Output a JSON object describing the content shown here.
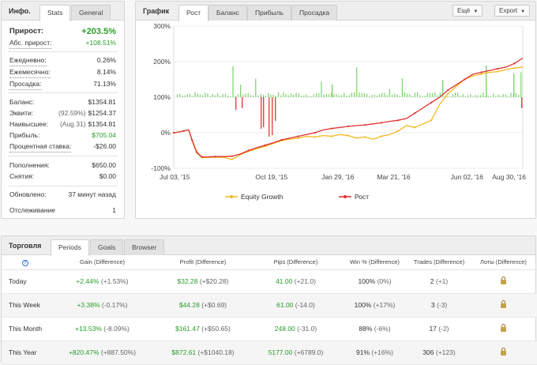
{
  "info": {
    "title": "Инфо.",
    "tabs": [
      "Stats",
      "General"
    ],
    "rows": {
      "gain_label": "Прирост:",
      "gain_value": "+203.5%",
      "abs_label": "Абс. прирост:",
      "abs_value": "+108.51%",
      "daily_label": "Ежедневно:",
      "daily_value": "0.26%",
      "monthly_label": "Ежемесячно:",
      "monthly_value": "8.14%",
      "drawdown_label": "Просадка:",
      "drawdown_value": "71.13%",
      "balance_label": "Баланс:",
      "balance_value": "$1354.81",
      "equity_label": "Эквити:",
      "equity_sub": "(92.59%)",
      "equity_value": "$1254.37",
      "highest_label": "Наивысшее:",
      "highest_sub": "(Aug 31)",
      "highest_value": "$1354.81",
      "profit_label": "Прибыль:",
      "profit_value": "$705.04",
      "interest_label": "Процентная ставка:",
      "interest_value": "-$26.00",
      "deposits_label": "Пополнения:",
      "deposits_value": "$650.00",
      "withdrawals_label": "Снятия:",
      "withdrawals_value": "$0.00",
      "updated_label": "Обновлено:",
      "updated_value": "37 минут назад",
      "tracking_label": "Отслеживание",
      "tracking_value": "1"
    }
  },
  "chart_panel": {
    "title": "График",
    "tabs": [
      "Рост",
      "Баланс",
      "Прибыль",
      "Просадка"
    ],
    "more_label": "Ещё",
    "export_label": "Export",
    "legend_equity": "Equity Growth",
    "legend_growth": "Рост",
    "colors": {
      "growth": "#e03030",
      "equity": "#f2b81e",
      "bars": "#7bd36b",
      "neg_bars": "#e04444"
    }
  },
  "chart_data": {
    "type": "line",
    "yticks": [
      "300%",
      "200%",
      "100%",
      "0%",
      "-100%"
    ],
    "ylim": [
      -100,
      300
    ],
    "xticks": [
      "Jul 03, '15",
      "Oct 19, '15",
      "Jan 29, '16",
      "Mar 21, '16",
      "Jun 02, '16",
      "Aug 30, '16"
    ],
    "x": [
      0,
      6,
      12,
      18,
      22,
      26,
      28,
      30,
      34,
      40,
      50,
      60,
      70,
      80,
      90,
      100,
      110,
      120,
      130,
      140,
      150,
      160,
      170,
      180,
      190,
      200,
      210,
      220,
      230,
      240,
      250,
      260,
      270,
      280,
      290,
      300,
      310,
      320,
      330,
      340,
      350,
      360,
      370,
      380,
      390,
      400,
      410,
      420
    ],
    "series": [
      {
        "name": "Рост",
        "values": [
          0,
          2,
          5,
          8,
          -20,
          -45,
          -55,
          -60,
          -68,
          -68,
          -67,
          -67,
          -66,
          -60,
          -50,
          -42,
          -35,
          -28,
          -20,
          -15,
          -10,
          -5,
          0,
          8,
          12,
          15,
          18,
          20,
          22,
          25,
          28,
          32,
          35,
          40,
          55,
          70,
          85,
          100,
          120,
          135,
          150,
          165,
          170,
          175,
          180,
          185,
          195,
          210
        ]
      },
      {
        "name": "Equity Growth",
        "values": [
          0,
          2,
          5,
          8,
          -22,
          -48,
          -57,
          -62,
          -70,
          -70,
          -69,
          -69,
          -75,
          -62,
          -52,
          -45,
          -38,
          -30,
          -22,
          -18,
          -15,
          -10,
          -12,
          -8,
          -10,
          -5,
          -8,
          -15,
          -12,
          -18,
          -10,
          -5,
          5,
          20,
          15,
          25,
          35,
          80,
          110,
          130,
          150,
          160,
          165,
          170,
          172,
          178,
          182,
          185
        ]
      }
    ]
  },
  "trading": {
    "title": "Торговля",
    "tabs": [
      "Periods",
      "Goals",
      "Browser"
    ],
    "headers": [
      "Gain (Difference)",
      "Profit (Difference)",
      "Pips (Difference)",
      "Win % (Difference)",
      "Trades (Difference)",
      "Лоты (Difference)"
    ],
    "rows": [
      {
        "period": "Today",
        "gain": "+2.44%",
        "gain_d": "(+1.53%)",
        "profit": "$32.28",
        "profit_d": "(+$20.28)",
        "pips": "41.00",
        "pips_d": "(+21.0)",
        "win": "100%",
        "win_d": "(0%)",
        "trades": "2",
        "trades_d": "(+1)"
      },
      {
        "period": "This Week",
        "gain": "+3.38%",
        "gain_d": "(-0.17%)",
        "profit": "$44.28",
        "profit_d": "(+$0.69)",
        "pips": "61.00",
        "pips_d": "(-14.0)",
        "win": "100%",
        "win_d": "(+17%)",
        "trades": "3",
        "trades_d": "(-3)"
      },
      {
        "period": "This Month",
        "gain": "+13.53%",
        "gain_d": "(-8.09%)",
        "profit": "$161.47",
        "profit_d": "(+$50.65)",
        "pips": "248.00",
        "pips_d": "(-31.0)",
        "win": "88%",
        "win_d": "(-6%)",
        "trades": "17",
        "trades_d": "(-2)"
      },
      {
        "period": "This Year",
        "gain": "+820.47%",
        "gain_d": "(+887.50%)",
        "profit": "$872.61",
        "profit_d": "(+$1040.18)",
        "pips": "5177.00",
        "pips_d": "(+6789.0)",
        "win": "91%",
        "win_d": "(+16%)",
        "trades": "306",
        "trades_d": "(+123)"
      }
    ]
  }
}
